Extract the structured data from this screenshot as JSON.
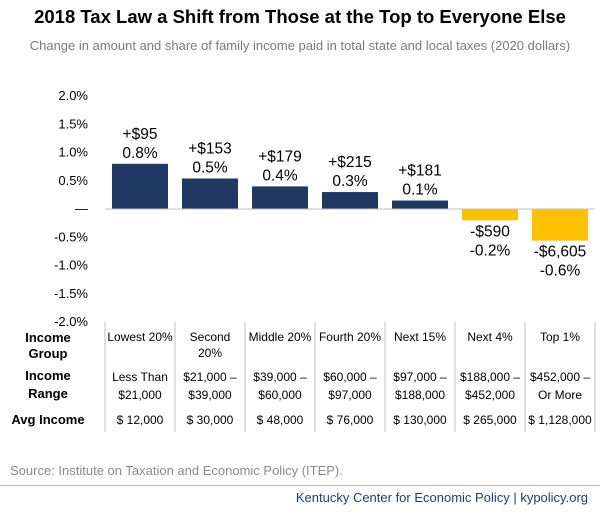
{
  "title": "2018 Tax Law a Shift from Those at the Top to Everyone Else",
  "subtitle": "Change in amount and share of family income paid in total state and local taxes (2020 dollars)",
  "source": "Source: Institute on Taxation and Economic Policy (ITEP).",
  "footer": "Kentucky Center for Economic Policy | kypolicy.org",
  "colors": {
    "positive": "#1f3864",
    "negative": "#ffc000"
  },
  "chart_data": {
    "type": "bar",
    "categories": [
      "Lowest 20%",
      "Second 20%",
      "Middle 20%",
      "Fourth 20%",
      "Next 15%",
      "Next 4%",
      "Top 1%"
    ],
    "values": [
      0.8,
      0.54,
      0.4,
      0.3,
      0.15,
      -0.2,
      -0.56
    ],
    "amount_labels": [
      "+$95",
      "+$153",
      "+$179",
      "+$215",
      "+$181",
      "-$590",
      "-$6,605"
    ],
    "share_labels": [
      "0.8%",
      "0.5%",
      "0.4%",
      "0.3%",
      "0.1%",
      "-0.2%",
      "-0.6%"
    ],
    "yticks": [
      "2.0%",
      "1.5%",
      "1.0%",
      "0.5%",
      "—",
      "-0.5%",
      "-1.0%",
      "-1.5%",
      "-2.0%"
    ],
    "ylim": [
      -2.0,
      2.0
    ],
    "table": {
      "row_headers": [
        [
          "Income",
          "Group"
        ],
        [
          "Income",
          "Range"
        ],
        [
          "Avg Income"
        ]
      ],
      "income_group": [
        [
          "Lowest 20%"
        ],
        [
          "Second",
          "20%"
        ],
        [
          "Middle 20%"
        ],
        [
          "Fourth 20%"
        ],
        [
          "Next 15%"
        ],
        [
          "Next 4%"
        ],
        [
          "Top 1%"
        ]
      ],
      "income_range": [
        [
          "Less Than",
          "$21,000"
        ],
        [
          "$21,000 –",
          "$39,000"
        ],
        [
          "$39,000 –",
          "$60,000"
        ],
        [
          "$60,000 –",
          "$97,000"
        ],
        [
          "$97,000 –",
          "$188,000"
        ],
        [
          "$188,000 –",
          "$452,000"
        ],
        [
          "$452,000 –",
          "Or More"
        ]
      ],
      "avg_income": [
        "$ 12,000",
        "$ 30,000",
        "$ 48,000",
        "$ 76,000",
        "$ 130,000",
        "$ 265,000",
        "$ 1,128,000"
      ]
    }
  }
}
